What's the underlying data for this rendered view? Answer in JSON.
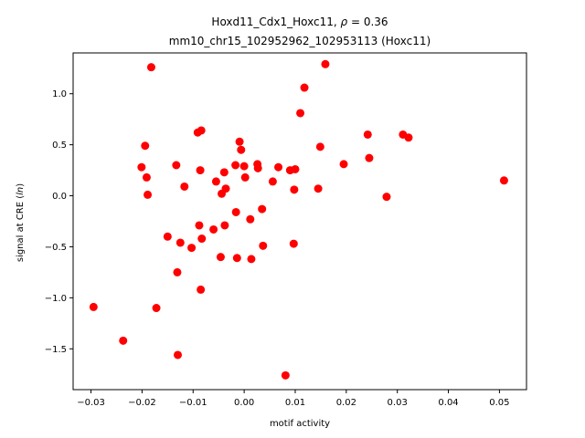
{
  "chart_data": {
    "type": "scatter",
    "title_line1_prefix": "Hoxd11_Cdx1_Hoxc11, ",
    "title_line1_rho": "ρ",
    "title_line1_suffix": " = 0.36",
    "title_line2": "mm10_chr15_102952962_102953113 (Hoxc11)",
    "xlabel": "motif activity",
    "ylabel_prefix": "signal at CRE (",
    "ylabel_italic": "ln",
    "ylabel_suffix": ")",
    "xlim": [
      -0.0335,
      0.0553
    ],
    "ylim": [
      -1.9,
      1.4
    ],
    "xticks": [
      -0.03,
      -0.02,
      -0.01,
      0.0,
      0.01,
      0.02,
      0.03,
      0.04,
      0.05
    ],
    "xtick_labels": [
      "−0.03",
      "−0.02",
      "−0.01",
      "0.00",
      "0.01",
      "0.02",
      "0.03",
      "0.04",
      "0.05"
    ],
    "yticks": [
      -1.5,
      -1.0,
      -0.5,
      0.0,
      0.5,
      1.0
    ],
    "ytick_labels": [
      "−1.5",
      "−1.0",
      "−0.5",
      "0.0",
      "0.5",
      "1.0"
    ],
    "marker_color": "#ff0000",
    "grid": false,
    "points": [
      {
        "x": -0.0295,
        "y": -1.09
      },
      {
        "x": -0.0237,
        "y": -1.42
      },
      {
        "x": -0.0201,
        "y": 0.28
      },
      {
        "x": -0.0194,
        "y": 0.49
      },
      {
        "x": -0.0191,
        "y": 0.18
      },
      {
        "x": -0.0189,
        "y": 0.01
      },
      {
        "x": -0.0182,
        "y": 1.26
      },
      {
        "x": -0.0172,
        "y": -1.1
      },
      {
        "x": -0.015,
        "y": -0.4
      },
      {
        "x": -0.0133,
        "y": 0.3
      },
      {
        "x": -0.0131,
        "y": -0.75
      },
      {
        "x": -0.013,
        "y": -1.56
      },
      {
        "x": -0.0125,
        "y": -0.46
      },
      {
        "x": -0.0117,
        "y": 0.09
      },
      {
        "x": -0.0103,
        "y": -0.51
      },
      {
        "x": -0.0091,
        "y": 0.62
      },
      {
        "x": -0.0088,
        "y": -0.29
      },
      {
        "x": -0.0086,
        "y": 0.25
      },
      {
        "x": -0.0085,
        "y": -0.92
      },
      {
        "x": -0.0084,
        "y": 0.64
      },
      {
        "x": -0.0083,
        "y": -0.42
      },
      {
        "x": -0.006,
        "y": -0.33
      },
      {
        "x": -0.0055,
        "y": 0.14
      },
      {
        "x": -0.0046,
        "y": -0.6
      },
      {
        "x": -0.0044,
        "y": 0.02
      },
      {
        "x": -0.0039,
        "y": 0.23
      },
      {
        "x": -0.0038,
        "y": -0.29
      },
      {
        "x": -0.0036,
        "y": 0.07
      },
      {
        "x": -0.0017,
        "y": 0.3
      },
      {
        "x": -0.0016,
        "y": -0.16
      },
      {
        "x": -0.0014,
        "y": -0.61
      },
      {
        "x": -0.0009,
        "y": 0.53
      },
      {
        "x": -0.0006,
        "y": 0.45
      },
      {
        "x": 0.0,
        "y": 0.29
      },
      {
        "x": 0.0002,
        "y": 0.18
      },
      {
        "x": 0.0012,
        "y": -0.23
      },
      {
        "x": 0.0014,
        "y": -0.62
      },
      {
        "x": 0.0026,
        "y": 0.31
      },
      {
        "x": 0.0027,
        "y": 0.27
      },
      {
        "x": 0.0035,
        "y": -0.13
      },
      {
        "x": 0.0037,
        "y": -0.49
      },
      {
        "x": 0.0056,
        "y": 0.14
      },
      {
        "x": 0.0067,
        "y": 0.28
      },
      {
        "x": 0.0081,
        "y": -1.76
      },
      {
        "x": 0.009,
        "y": 0.25
      },
      {
        "x": 0.0097,
        "y": -0.47
      },
      {
        "x": 0.0098,
        "y": 0.06
      },
      {
        "x": 0.01,
        "y": 0.26
      },
      {
        "x": 0.011,
        "y": 0.81
      },
      {
        "x": 0.0118,
        "y": 1.06
      },
      {
        "x": 0.0145,
        "y": 0.07
      },
      {
        "x": 0.0149,
        "y": 0.48
      },
      {
        "x": 0.0159,
        "y": 1.29
      },
      {
        "x": 0.0195,
        "y": 0.31
      },
      {
        "x": 0.0242,
        "y": 0.6
      },
      {
        "x": 0.0245,
        "y": 0.37
      },
      {
        "x": 0.0279,
        "y": -0.01
      },
      {
        "x": 0.0311,
        "y": 0.6
      },
      {
        "x": 0.0322,
        "y": 0.57
      },
      {
        "x": 0.0509,
        "y": 0.15
      }
    ]
  }
}
